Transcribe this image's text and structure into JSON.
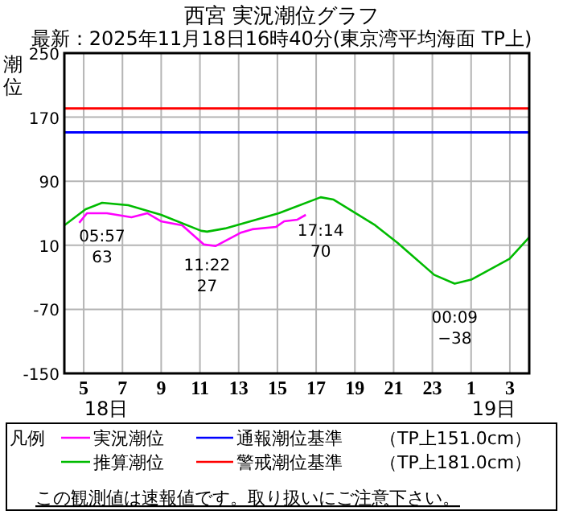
{
  "chart_data": {
    "type": "line",
    "title": "西宮 実況潮位グラフ",
    "subtitle": "最新：2025年11月18日16時40分(東京湾平均海面 TP上)",
    "ylabel": "潮位",
    "legend_title": "凡例",
    "xlim": [
      "2025-11-18T04:00",
      "2025-11-19T04:00"
    ],
    "xticks": [
      {
        "value": "2025-11-18T05:00",
        "label": "5"
      },
      {
        "value": "2025-11-18T07:00",
        "label": "7"
      },
      {
        "value": "2025-11-18T09:00",
        "label": "9"
      },
      {
        "value": "2025-11-18T11:00",
        "label": "11"
      },
      {
        "value": "2025-11-18T13:00",
        "label": "13"
      },
      {
        "value": "2025-11-18T15:00",
        "label": "15"
      },
      {
        "value": "2025-11-18T17:00",
        "label": "17"
      },
      {
        "value": "2025-11-18T19:00",
        "label": "19"
      },
      {
        "value": "2025-11-18T21:00",
        "label": "21"
      },
      {
        "value": "2025-11-18T23:00",
        "label": "23"
      },
      {
        "value": "2025-11-19T01:00",
        "label": "1"
      },
      {
        "value": "2025-11-19T03:00",
        "label": "3"
      }
    ],
    "ylim": [
      -150,
      250
    ],
    "yticks": [
      -150,
      -70,
      10,
      90,
      170,
      250
    ],
    "grid": true,
    "legend": "bottom",
    "marker": "none",
    "line_style": "solid",
    "series": [
      {
        "name": "実況潮位",
        "color": "#ff00ff",
        "x": [
          "2025-11-18T04:46",
          "2025-11-18T05:10",
          "2025-11-18T06:12",
          "2025-11-18T07:28",
          "2025-11-18T08:17",
          "2025-11-18T08:59",
          "2025-11-18T10:05",
          "2025-11-18T11:12",
          "2025-11-18T11:48",
          "2025-11-18T13:08",
          "2025-11-18T13:42",
          "2025-11-18T14:56",
          "2025-11-18T15:21",
          "2025-11-18T16:02",
          "2025-11-18T16:28"
        ],
        "values": [
          38,
          50,
          50,
          45,
          50,
          40,
          35,
          11,
          9,
          26,
          30,
          33,
          40,
          42,
          48
        ]
      },
      {
        "name": "推算潮位",
        "color": "#00bb00",
        "x": [
          "2025-11-18T04:00",
          "2025-11-18T05:06",
          "2025-11-18T05:57",
          "2025-11-18T07:18",
          "2025-11-18T09:00",
          "2025-11-18T11:04",
          "2025-11-18T11:22",
          "2025-11-18T12:18",
          "2025-11-18T15:04",
          "2025-11-18T17:14",
          "2025-11-18T17:54",
          "2025-11-18T20:03",
          "2025-11-18T21:12",
          "2025-11-18T23:06",
          "2025-11-19T00:09",
          "2025-11-19T01:00",
          "2025-11-19T02:59",
          "2025-11-19T04:00"
        ],
        "values": [
          35,
          55,
          63,
          60,
          48,
          28,
          27,
          31,
          50,
          70,
          67,
          35,
          13,
          -27,
          -38,
          -33,
          -7,
          20
        ]
      }
    ],
    "ref_lines": [
      {
        "axis": "y",
        "value": 151,
        "label": "通報潮位基準",
        "color": "#0000ff"
      },
      {
        "axis": "y",
        "value": 181,
        "label": "警戒潮位基準",
        "color": "#ff0000"
      }
    ],
    "annotations": [
      {
        "text": "05:57\n63",
        "x": "2025-11-18T05:57",
        "y": 63
      },
      {
        "text": "11:22\n27",
        "x": "2025-11-18T11:22",
        "y": 27
      },
      {
        "text": "17:14\n70",
        "x": "2025-11-18T17:14",
        "y": 70
      },
      {
        "text": "00:09\n−38",
        "x": "2025-11-19T00:09",
        "y": -38
      },
      "18日",
      "19日",
      "（TP上151.0cm）",
      "（TP上181.0cm）",
      "この観測値は速報値です。取り扱いにご注意下さい。"
    ]
  }
}
